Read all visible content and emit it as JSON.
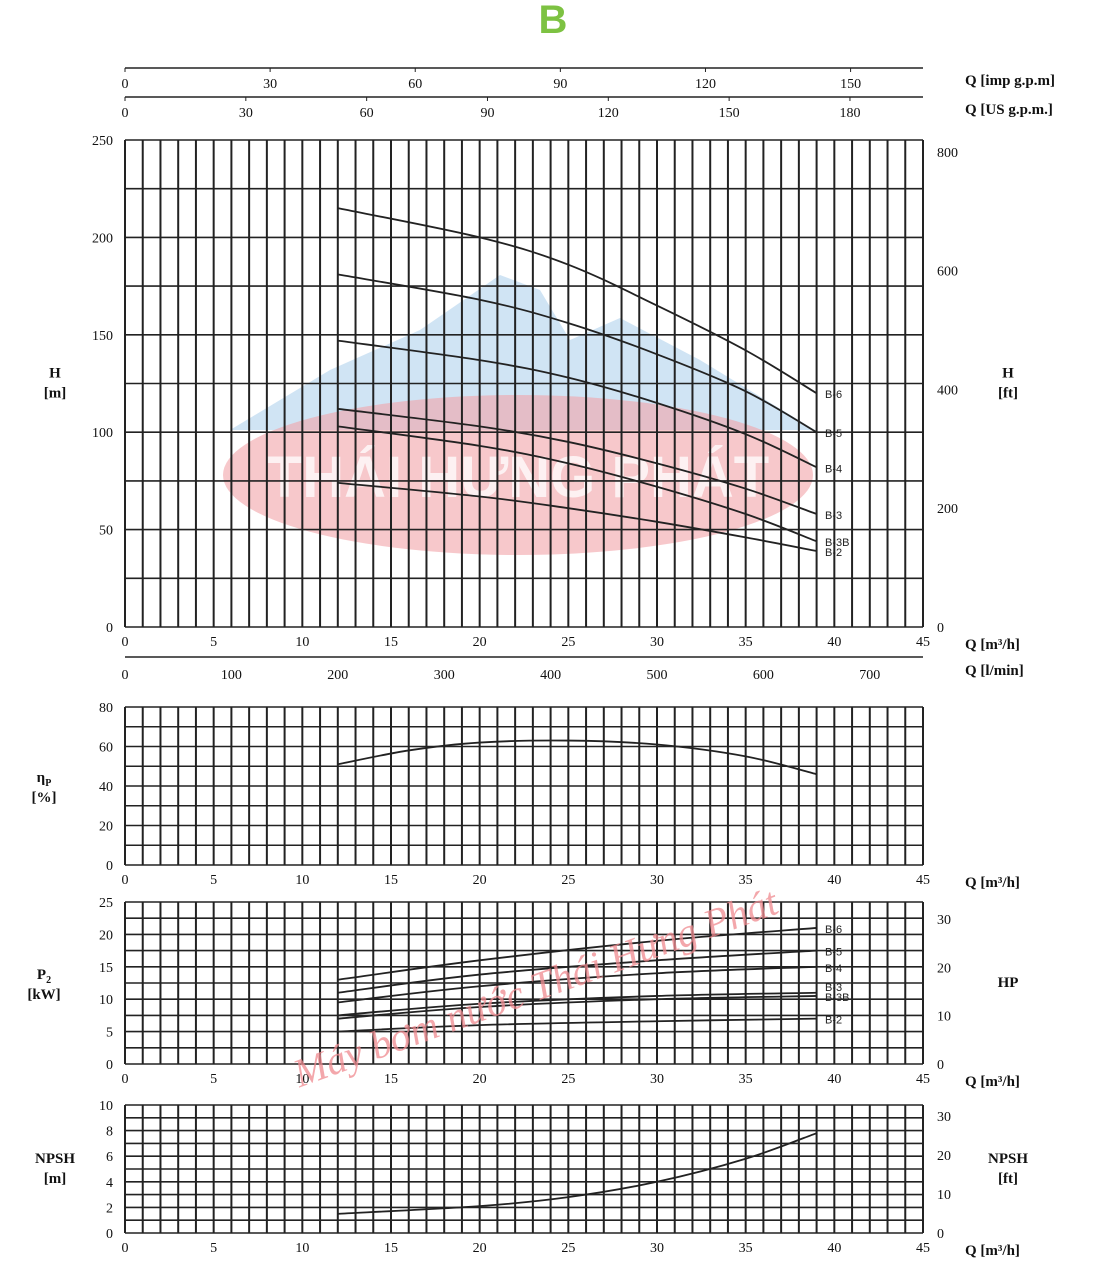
{
  "title": "B",
  "title_color": "#7dc242",
  "watermark": {
    "logo_text": "THÁI HƯNG PHÁT",
    "diagonal_text": "Máy bơm nước Thái Hưng Phát"
  },
  "chart_data": [
    {
      "id": "head",
      "type": "line",
      "xlabel": "Q [m³/h]",
      "ylabel": "H [m]",
      "y2label": "H [ft]",
      "xlim": [
        0,
        45
      ],
      "ylim": [
        0,
        250
      ],
      "y2lim": [
        0,
        820.2
      ],
      "xticks": [
        0,
        5,
        10,
        15,
        20,
        25,
        30,
        35,
        40,
        45
      ],
      "yticks": [
        0,
        50,
        100,
        150,
        200,
        250
      ],
      "y2ticks": [
        0,
        200,
        400,
        600,
        800
      ],
      "top_axes": [
        {
          "label": "Q [imp g.p.m]",
          "ticks": [
            0,
            30,
            60,
            90,
            120,
            150
          ],
          "per_m3h": 3.666
        },
        {
          "label": "Q [US g.p.m.]",
          "ticks": [
            0,
            30,
            60,
            90,
            120,
            150,
            180
          ],
          "per_m3h": 4.403
        }
      ],
      "bottom_axis2": {
        "label": "Q [l/min]",
        "ticks": [
          0,
          100,
          200,
          300,
          400,
          500,
          600,
          700
        ],
        "per_m3h": 16.667
      },
      "grid": true,
      "series": [
        {
          "name": "B-6",
          "x": [
            12,
            20,
            25,
            30,
            35,
            39
          ],
          "y": [
            215,
            200,
            186,
            165,
            142,
            120
          ]
        },
        {
          "name": "B-5",
          "x": [
            12,
            20,
            25,
            30,
            35,
            39
          ],
          "y": [
            181,
            168,
            156,
            140,
            121,
            100
          ]
        },
        {
          "name": "B-4",
          "x": [
            12,
            20,
            25,
            30,
            35,
            39
          ],
          "y": [
            147,
            137,
            128,
            115,
            99,
            82
          ]
        },
        {
          "name": "B-3",
          "x": [
            12,
            20,
            25,
            30,
            35,
            39
          ],
          "y": [
            112,
            103,
            95,
            84,
            71,
            58
          ]
        },
        {
          "name": "B-3B",
          "x": [
            12,
            20,
            25,
            30,
            35,
            39
          ],
          "y": [
            103,
            93,
            84,
            72,
            58,
            44
          ]
        },
        {
          "name": "B-2",
          "x": [
            12,
            20,
            25,
            30,
            35,
            39
          ],
          "y": [
            74,
            67,
            61,
            54,
            46,
            39
          ]
        }
      ]
    },
    {
      "id": "efficiency",
      "type": "line",
      "xlabel": "Q [m³/h]",
      "ylabel_symbol": "η",
      "ylabel_sub": "P",
      "ylabel_unit": "[%]",
      "xlim": [
        0,
        45
      ],
      "ylim": [
        0,
        80
      ],
      "xticks": [
        0,
        5,
        10,
        15,
        20,
        25,
        30,
        35,
        40,
        45
      ],
      "yticks": [
        0,
        20,
        40,
        60,
        80
      ],
      "grid": true,
      "series": [
        {
          "x": [
            12,
            16,
            20,
            25,
            30,
            35,
            39
          ],
          "y": [
            51,
            58,
            62,
            63,
            61,
            55,
            46
          ]
        }
      ]
    },
    {
      "id": "power",
      "type": "line",
      "xlabel": "Q [m³/h]",
      "ylabel_symbol": "P",
      "ylabel_sub": "2",
      "ylabel_unit": "[kW]",
      "y2label": "HP",
      "xlim": [
        0,
        45
      ],
      "ylim": [
        0,
        25
      ],
      "y2lim": [
        0,
        33.5
      ],
      "xticks": [
        0,
        5,
        10,
        15,
        20,
        25,
        30,
        35,
        40,
        45
      ],
      "yticks": [
        0,
        5,
        10,
        15,
        20,
        25
      ],
      "y2ticks": [
        0,
        10,
        20,
        30
      ],
      "grid": true,
      "series": [
        {
          "name": "B-6",
          "x": [
            12,
            20,
            30,
            39
          ],
          "y": [
            13,
            16,
            19,
            21
          ]
        },
        {
          "name": "B-5",
          "x": [
            12,
            20,
            30,
            39
          ],
          "y": [
            11,
            13.8,
            16,
            17.5
          ]
        },
        {
          "name": "B-4",
          "x": [
            12,
            20,
            30,
            39
          ],
          "y": [
            9.5,
            12,
            14,
            15
          ]
        },
        {
          "name": "B-3",
          "x": [
            12,
            20,
            30,
            39
          ],
          "y": [
            7.5,
            9.3,
            10.5,
            11
          ]
        },
        {
          "name": "B-3B",
          "x": [
            12,
            20,
            30,
            39
          ],
          "y": [
            7,
            8.8,
            10,
            10.5
          ]
        },
        {
          "name": "B-2",
          "x": [
            12,
            20,
            30,
            39
          ],
          "y": [
            5,
            6,
            6.6,
            7
          ]
        }
      ]
    },
    {
      "id": "npsh",
      "type": "line",
      "xlabel": "Q [m³/h]",
      "ylabel": "NPSH [m]",
      "y2label": "NPSH [ft]",
      "xlim": [
        0,
        45
      ],
      "ylim": [
        0,
        10
      ],
      "y2lim": [
        0,
        32.8
      ],
      "xticks": [
        0,
        5,
        10,
        15,
        20,
        25,
        30,
        35,
        40,
        45
      ],
      "yticks": [
        0,
        2,
        4,
        6,
        8,
        10
      ],
      "y2ticks": [
        0,
        10,
        20,
        30
      ],
      "grid": true,
      "series": [
        {
          "x": [
            12,
            20,
            25,
            30,
            35,
            39
          ],
          "y": [
            1.5,
            2.1,
            2.8,
            4,
            5.8,
            7.8
          ]
        }
      ]
    }
  ]
}
